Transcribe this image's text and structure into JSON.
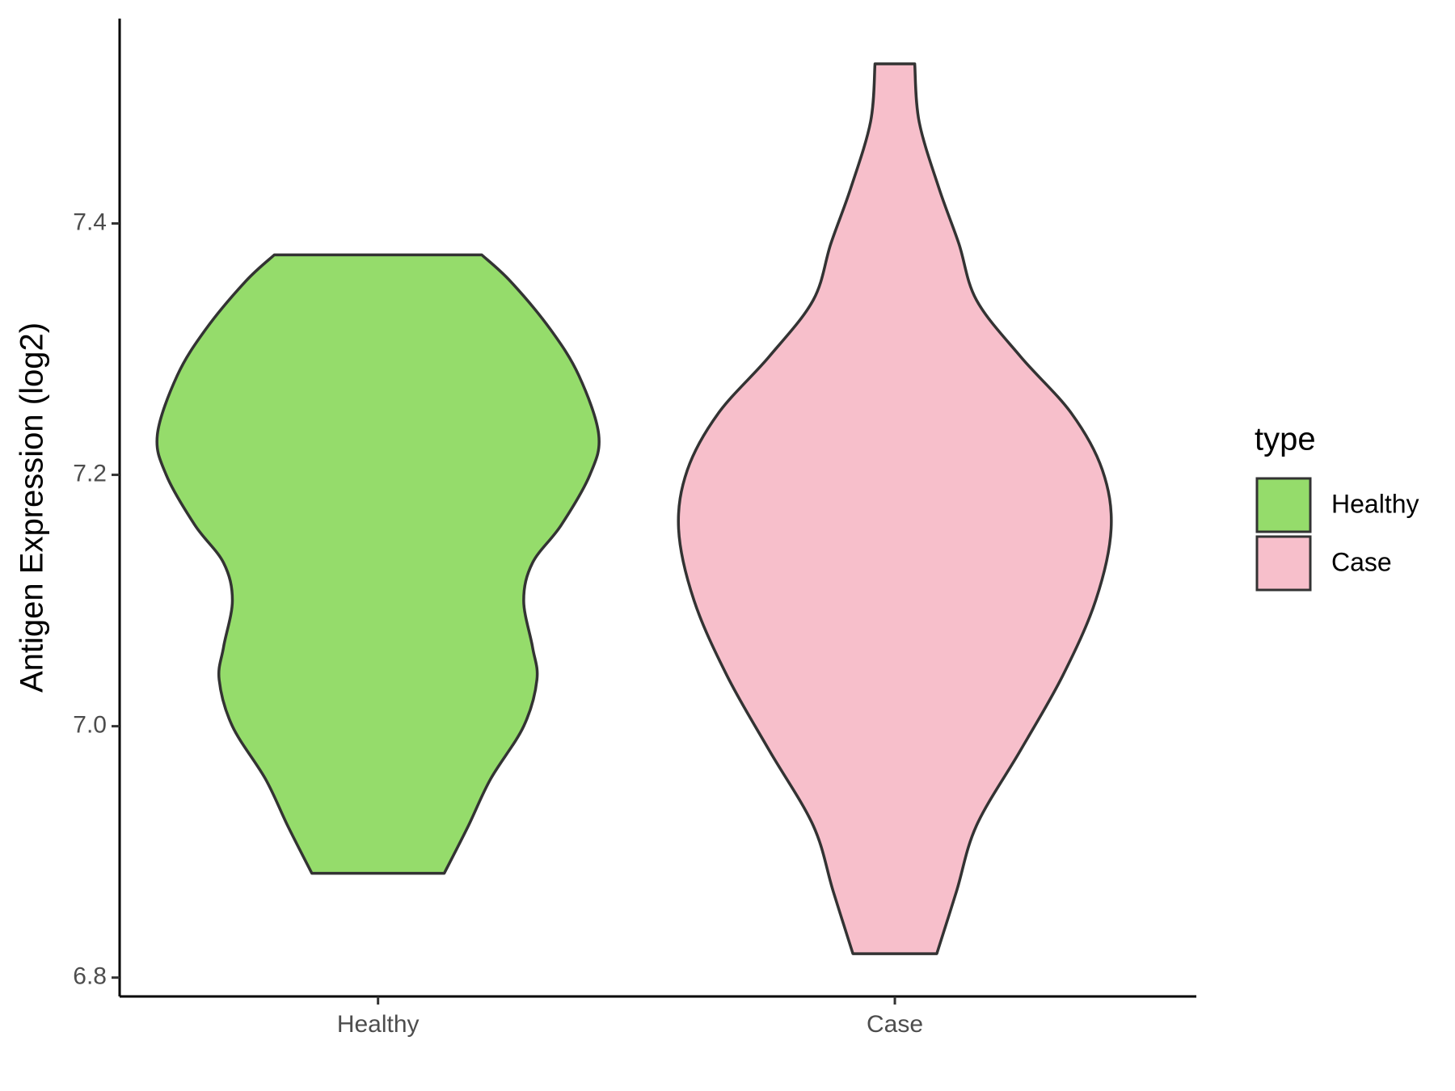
{
  "chart_data": {
    "type": "violin",
    "y_label": "Antigen Expression (log2)",
    "legend_title": "type",
    "legend": "right",
    "categories": [
      "Healthy",
      "Case"
    ],
    "ylim": [
      6.785,
      7.563
    ],
    "yticks": [
      6.8,
      {
        "value": 7,
        "label": "7.0"
      },
      7.2,
      7.4
    ],
    "series": [
      {
        "name": "Healthy",
        "color": "#95dc6b",
        "y": [
          7.375,
          7.354,
          7.316,
          7.279,
          7.232,
          7.2,
          7.16,
          7.13,
          7.1,
          7.063,
          7.037,
          7.0,
          6.958,
          6.921,
          6.883
        ],
        "width": [
          0.47,
          0.6,
          0.78,
          0.91,
          1.0,
          0.96,
          0.83,
          0.7,
          0.66,
          0.7,
          0.72,
          0.66,
          0.51,
          0.41,
          0.3
        ]
      },
      {
        "name": "Case",
        "color": "#f7bfcb",
        "y": [
          7.527,
          7.481,
          7.428,
          7.384,
          7.339,
          7.294,
          7.249,
          7.204,
          7.157,
          7.1,
          7.04,
          6.981,
          6.921,
          6.869,
          6.819
        ],
        "width": [
          0.09,
          0.11,
          0.2,
          0.29,
          0.37,
          0.57,
          0.8,
          0.94,
          0.98,
          0.91,
          0.76,
          0.57,
          0.37,
          0.28,
          0.19
        ]
      }
    ]
  }
}
